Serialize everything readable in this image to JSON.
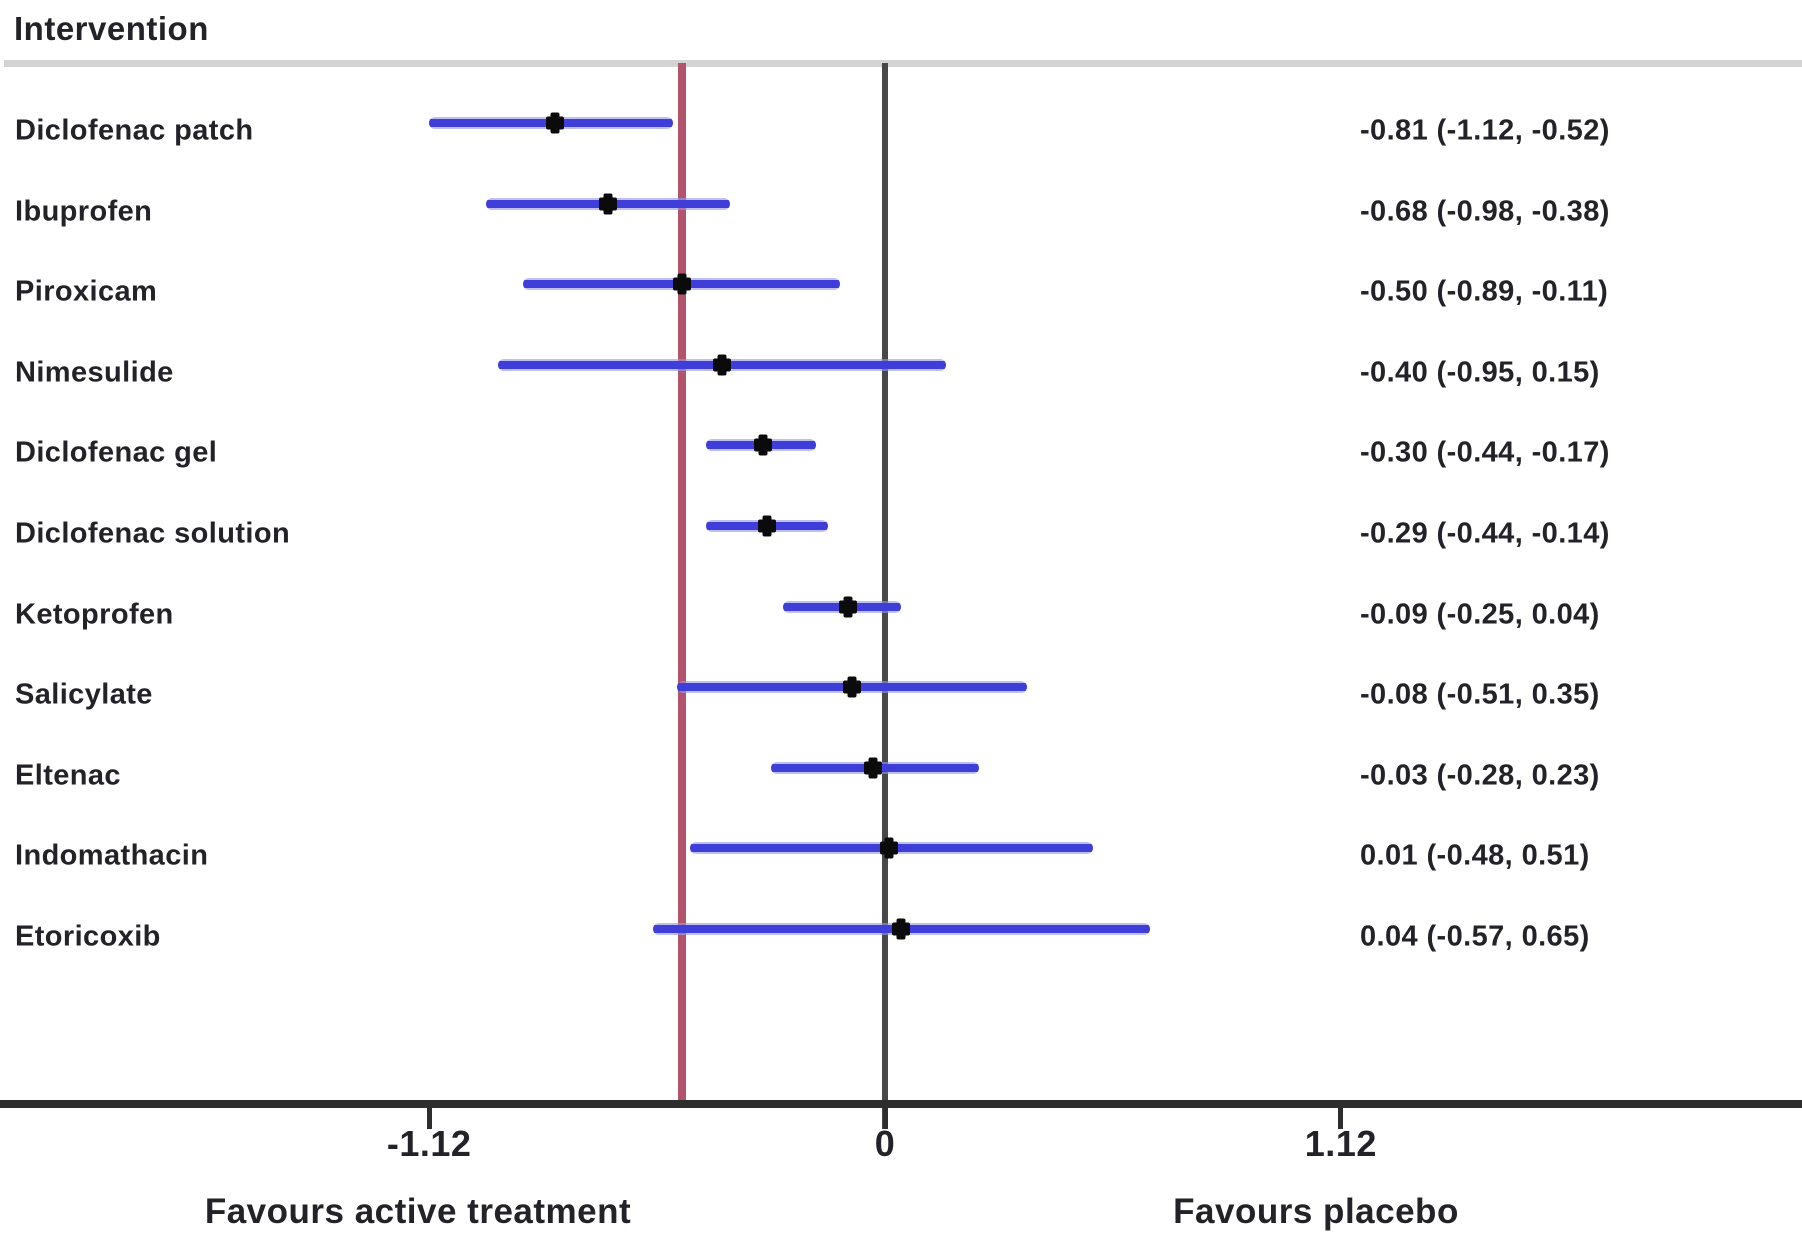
{
  "title": "Intervention",
  "chart_data": {
    "type": "forest",
    "title": "Intervention",
    "xlabel_left": "Favours active treatment",
    "xlabel_right": "Favours placebo",
    "grid": false,
    "legend_position": "none",
    "xlim": [
      -2.17,
      2.25
    ],
    "axis_ticks": [
      {
        "value": -1.12,
        "label": "-1.12"
      },
      {
        "value": 0,
        "label": "0"
      },
      {
        "value": 1.12,
        "label": "1.12"
      }
    ],
    "zero_line_value": 0,
    "reference_line_value": -0.5,
    "rows": [
      {
        "label": "Diclofenac patch",
        "estimate": -0.81,
        "ci_low": -1.12,
        "ci_high": -0.52,
        "text": "-0.81 (-1.12, -0.52)"
      },
      {
        "label": "Ibuprofen",
        "estimate": -0.68,
        "ci_low": -0.98,
        "ci_high": -0.38,
        "text": "-0.68 (-0.98, -0.38)"
      },
      {
        "label": "Piroxicam",
        "estimate": -0.5,
        "ci_low": -0.89,
        "ci_high": -0.11,
        "text": "-0.50 (-0.89, -0.11)"
      },
      {
        "label": "Nimesulide",
        "estimate": -0.4,
        "ci_low": -0.95,
        "ci_high": 0.15,
        "text": "-0.40 (-0.95, 0.15)"
      },
      {
        "label": "Diclofenac gel",
        "estimate": -0.3,
        "ci_low": -0.44,
        "ci_high": -0.17,
        "text": "-0.30 (-0.44, -0.17)"
      },
      {
        "label": "Diclofenac solution",
        "estimate": -0.29,
        "ci_low": -0.44,
        "ci_high": -0.14,
        "text": "-0.29 (-0.44, -0.14)"
      },
      {
        "label": "Ketoprofen",
        "estimate": -0.09,
        "ci_low": -0.25,
        "ci_high": 0.04,
        "text": "-0.09 (-0.25, 0.04)"
      },
      {
        "label": "Salicylate",
        "estimate": -0.08,
        "ci_low": -0.51,
        "ci_high": 0.35,
        "text": "-0.08 (-0.51, 0.35)"
      },
      {
        "label": "Eltenac",
        "estimate": -0.03,
        "ci_low": -0.28,
        "ci_high": 0.23,
        "text": "-0.03 (-0.28, 0.23)"
      },
      {
        "label": "Indomathacin",
        "estimate": 0.01,
        "ci_low": -0.48,
        "ci_high": 0.51,
        "text": "0.01 (-0.48, 0.51)"
      },
      {
        "label": "Etoricoxib",
        "estimate": 0.04,
        "ci_low": -0.57,
        "ci_high": 0.65,
        "text": "0.04 (-0.57, 0.65)"
      }
    ],
    "colors": {
      "ci_line": "#403ed8",
      "ci_halo": "#9696ee",
      "marker": "#0b0b0b",
      "reference_line_red": "#b2546c",
      "zero_line": "#484848",
      "axis": "#2e2e2e",
      "header_rule": "#d4d4d4",
      "text": "#222228"
    }
  }
}
